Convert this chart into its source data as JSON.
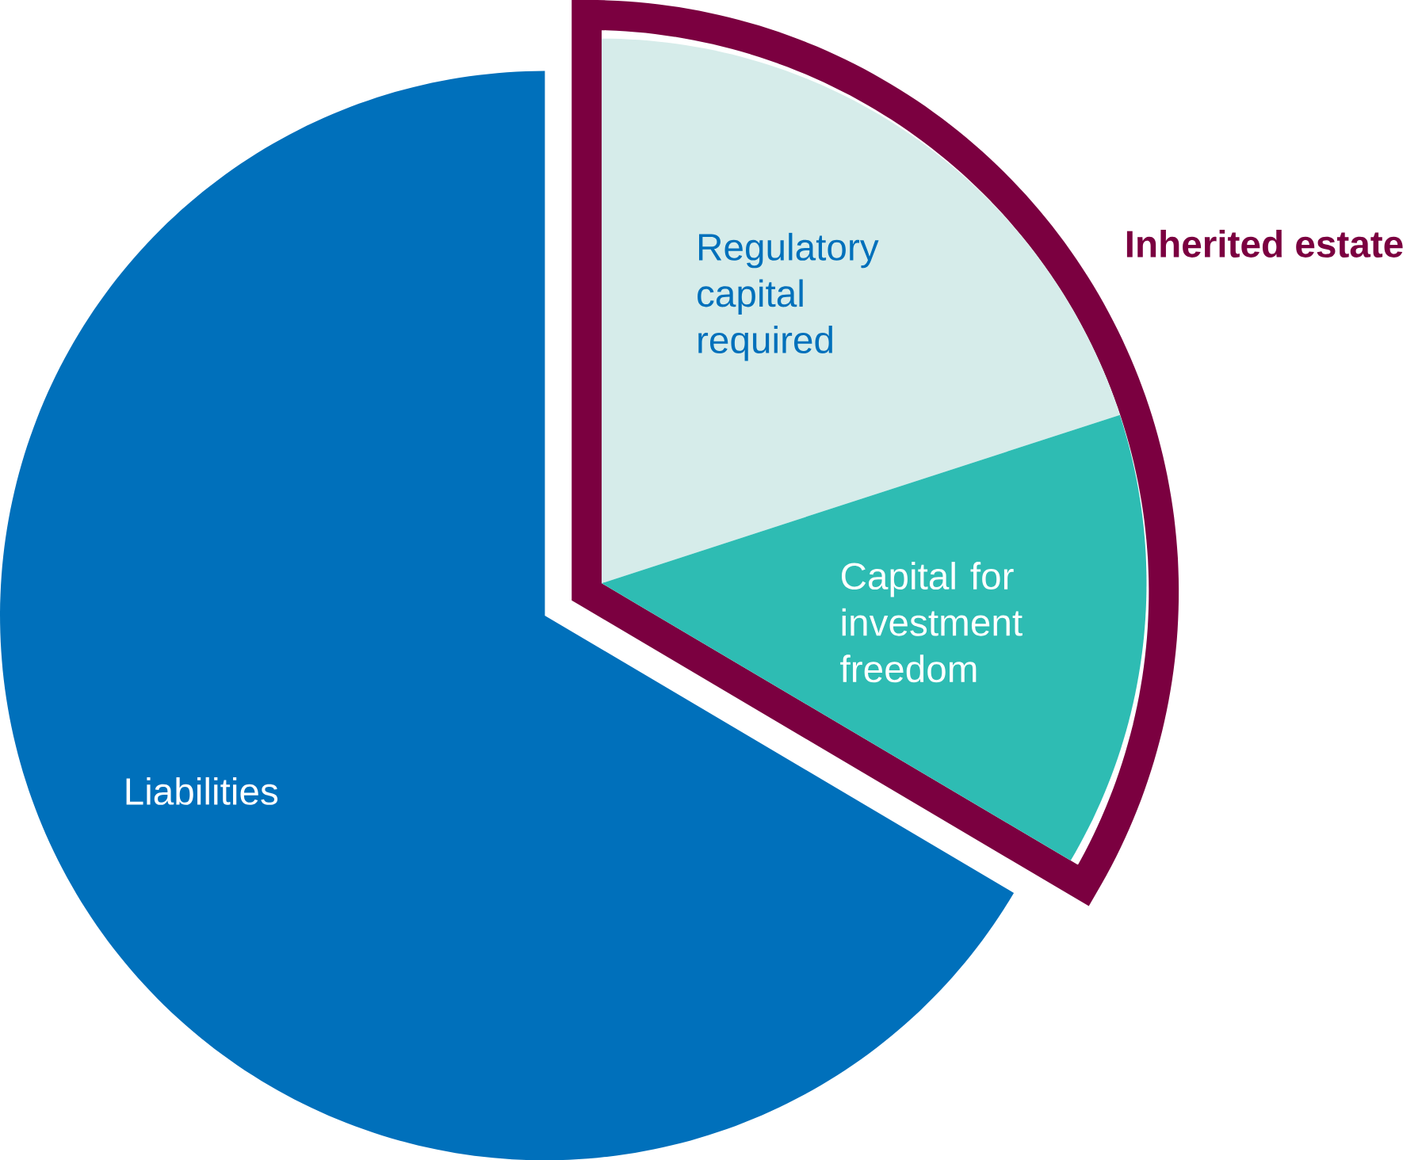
{
  "chart_data": {
    "type": "pie",
    "categories": [
      "Regulatory capital required",
      "Capital for investment freedom",
      "Liabilities"
    ],
    "values": [
      20,
      13.5,
      66.5
    ],
    "colors": [
      "#d6ecea",
      "#2ebcb3",
      "#0070bb"
    ],
    "annotations": [
      "Inherited estate"
    ]
  }
}
